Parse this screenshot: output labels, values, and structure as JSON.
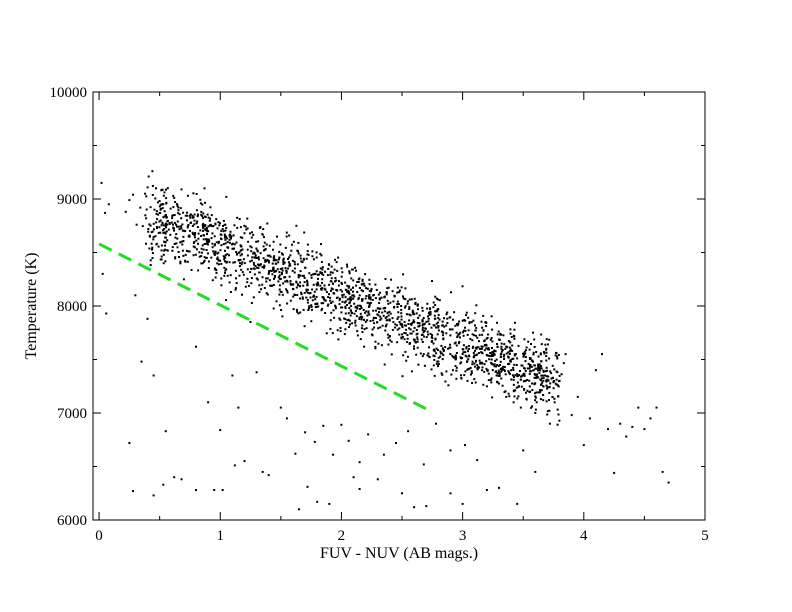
{
  "chart_data": {
    "type": "scatter",
    "title": "",
    "xlabel": "FUV - NUV (AB mags.)",
    "ylabel": "Temperature (K)",
    "xlim": [
      -0.05,
      5
    ],
    "ylim": [
      6000,
      10000
    ],
    "x_ticks": [
      0,
      1,
      2,
      3,
      4,
      5
    ],
    "y_ticks": [
      6000,
      7000,
      8000,
      9000,
      10000
    ],
    "x_tick_labels": [
      "0",
      "1",
      "2",
      "3",
      "4",
      "5"
    ],
    "y_tick_labels": [
      "6000",
      "7000",
      "8000",
      "9000",
      "10000"
    ],
    "grid": false,
    "legend": "none",
    "point_color": "#000000",
    "series": [
      {
        "kind": "points",
        "points": [
          [
            0.02,
            9150
          ],
          [
            0.05,
            8870
          ],
          [
            0.08,
            8950
          ],
          [
            0.03,
            8300
          ],
          [
            0.06,
            7930
          ],
          [
            0.22,
            8880
          ],
          [
            0.25,
            8990
          ],
          [
            0.28,
            9040
          ],
          [
            0.31,
            8760
          ],
          [
            0.34,
            8920
          ],
          [
            0.38,
            9050
          ],
          [
            0.41,
            9210
          ],
          [
            0.44,
            9260
          ],
          [
            0.47,
            9100
          ],
          [
            0.5,
            8870
          ],
          [
            0.53,
            8950
          ],
          [
            0.56,
            8830
          ],
          [
            0.59,
            8910
          ],
          [
            0.62,
            9010
          ],
          [
            0.65,
            8790
          ],
          [
            0.68,
            9090
          ],
          [
            0.71,
            8700
          ],
          [
            0.74,
            8650
          ],
          [
            0.78,
            8830
          ],
          [
            0.81,
            8790
          ],
          [
            0.84,
            8960
          ],
          [
            0.87,
            9100
          ],
          [
            0.9,
            8700
          ],
          [
            0.93,
            8850
          ],
          [
            0.96,
            8770
          ],
          [
            0.99,
            8600
          ],
          [
            1.02,
            8720
          ],
          [
            1.05,
            9020
          ],
          [
            1.08,
            8590
          ],
          [
            1.11,
            8660
          ],
          [
            1.14,
            8730
          ],
          [
            1.17,
            8520
          ],
          [
            1.2,
            8680
          ],
          [
            1.23,
            8600
          ],
          [
            1.26,
            8640
          ],
          [
            1.29,
            8450
          ],
          [
            1.33,
            8380
          ],
          [
            1.36,
            8520
          ],
          [
            1.4,
            8300
          ],
          [
            1.44,
            8600
          ],
          [
            1.48,
            8230
          ],
          [
            1.52,
            8430
          ],
          [
            1.56,
            8350
          ],
          [
            1.6,
            8200
          ],
          [
            1.64,
            8390
          ],
          [
            1.68,
            8080
          ],
          [
            1.72,
            8210
          ],
          [
            1.76,
            8510
          ],
          [
            1.8,
            8020
          ],
          [
            1.84,
            8300
          ],
          [
            1.88,
            8130
          ],
          [
            1.92,
            8260
          ],
          [
            1.96,
            8410
          ],
          [
            2.0,
            7940
          ],
          [
            2.04,
            8150
          ],
          [
            2.08,
            8000
          ],
          [
            2.12,
            8330
          ],
          [
            2.16,
            7900
          ],
          [
            2.2,
            8070
          ],
          [
            2.24,
            7860
          ],
          [
            2.28,
            8200
          ],
          [
            2.32,
            7800
          ],
          [
            2.36,
            7980
          ],
          [
            2.4,
            7720
          ],
          [
            2.44,
            8090
          ],
          [
            2.48,
            7850
          ],
          [
            2.52,
            7690
          ],
          [
            2.56,
            7990
          ],
          [
            2.6,
            7600
          ],
          [
            2.64,
            7810
          ],
          [
            2.68,
            7550
          ],
          [
            2.72,
            7880
          ],
          [
            2.76,
            7650
          ],
          [
            2.8,
            7480
          ],
          [
            2.84,
            7750
          ],
          [
            2.88,
            7600
          ],
          [
            2.92,
            7400
          ],
          [
            2.96,
            7820
          ],
          [
            3.0,
            7550
          ],
          [
            3.04,
            7300
          ],
          [
            3.08,
            7680
          ],
          [
            3.12,
            7450
          ],
          [
            3.16,
            7600
          ],
          [
            3.2,
            7250
          ],
          [
            3.24,
            7500
          ],
          [
            3.28,
            7350
          ],
          [
            3.32,
            7600
          ],
          [
            3.36,
            7150
          ],
          [
            3.4,
            7400
          ],
          [
            3.44,
            7550
          ],
          [
            3.48,
            7050
          ],
          [
            3.52,
            7300
          ],
          [
            3.56,
            7450
          ],
          [
            3.6,
            7000
          ],
          [
            3.64,
            7200
          ],
          [
            3.68,
            7350
          ],
          [
            3.72,
            6900
          ],
          [
            3.76,
            7100
          ],
          [
            3.8,
            7300
          ],
          [
            3.85,
            7550
          ],
          [
            3.9,
            6980
          ],
          [
            3.95,
            7150
          ],
          [
            4.0,
            6700
          ],
          [
            4.05,
            6950
          ],
          [
            4.1,
            7400
          ],
          [
            4.15,
            7550
          ],
          [
            4.2,
            6850
          ],
          [
            4.25,
            6440
          ],
          [
            4.3,
            6900
          ],
          [
            4.35,
            6780
          ],
          [
            4.4,
            6870
          ],
          [
            4.45,
            7050
          ],
          [
            4.5,
            6850
          ],
          [
            4.55,
            6950
          ],
          [
            4.6,
            7050
          ],
          [
            4.65,
            6450
          ],
          [
            4.7,
            6350
          ],
          [
            0.25,
            6720
          ],
          [
            0.28,
            6270
          ],
          [
            0.45,
            6230
          ],
          [
            0.53,
            6330
          ],
          [
            0.62,
            6400
          ],
          [
            0.68,
            6380
          ],
          [
            0.8,
            6280
          ],
          [
            0.95,
            6280
          ],
          [
            1.02,
            6280
          ],
          [
            1.12,
            6510
          ],
          [
            1.2,
            6550
          ],
          [
            1.35,
            6450
          ],
          [
            1.4,
            6420
          ],
          [
            1.65,
            6100
          ],
          [
            1.72,
            6310
          ],
          [
            1.8,
            6170
          ],
          [
            1.9,
            6150
          ],
          [
            2.1,
            6400
          ],
          [
            2.15,
            6290
          ],
          [
            2.3,
            6380
          ],
          [
            2.5,
            6250
          ],
          [
            2.6,
            6120
          ],
          [
            2.7,
            6130
          ],
          [
            2.9,
            6250
          ],
          [
            3.0,
            6150
          ],
          [
            3.2,
            6280
          ],
          [
            3.3,
            6300
          ],
          [
            3.45,
            6150
          ],
          [
            3.5,
            6650
          ],
          [
            3.6,
            6450
          ],
          [
            1.5,
            7050
          ],
          [
            1.55,
            6950
          ],
          [
            1.62,
            6620
          ],
          [
            1.7,
            6820
          ],
          [
            1.78,
            6730
          ],
          [
            1.85,
            6880
          ],
          [
            1.93,
            6610
          ],
          [
            2.0,
            6890
          ],
          [
            2.06,
            6740
          ],
          [
            2.15,
            6540
          ],
          [
            2.22,
            6800
          ],
          [
            2.35,
            6610
          ],
          [
            2.45,
            6720
          ],
          [
            2.55,
            6830
          ],
          [
            2.68,
            6520
          ],
          [
            2.78,
            6900
          ],
          [
            2.9,
            6650
          ],
          [
            3.02,
            6700
          ],
          [
            3.12,
            6560
          ],
          [
            0.3,
            8100
          ],
          [
            0.35,
            7480
          ],
          [
            0.4,
            7880
          ],
          [
            0.45,
            7350
          ],
          [
            0.55,
            6830
          ],
          [
            0.7,
            8250
          ],
          [
            0.8,
            7620
          ],
          [
            0.9,
            7100
          ],
          [
            1.0,
            6840
          ],
          [
            1.1,
            7350
          ],
          [
            1.15,
            7050
          ],
          [
            1.25,
            7850
          ],
          [
            1.3,
            7380
          ]
        ]
      },
      {
        "kind": "fit-line",
        "color": "#22dd22",
        "style": "dashed",
        "x": [
          0.0,
          2.75
        ],
        "y": [
          8580,
          7010
        ]
      }
    ]
  }
}
